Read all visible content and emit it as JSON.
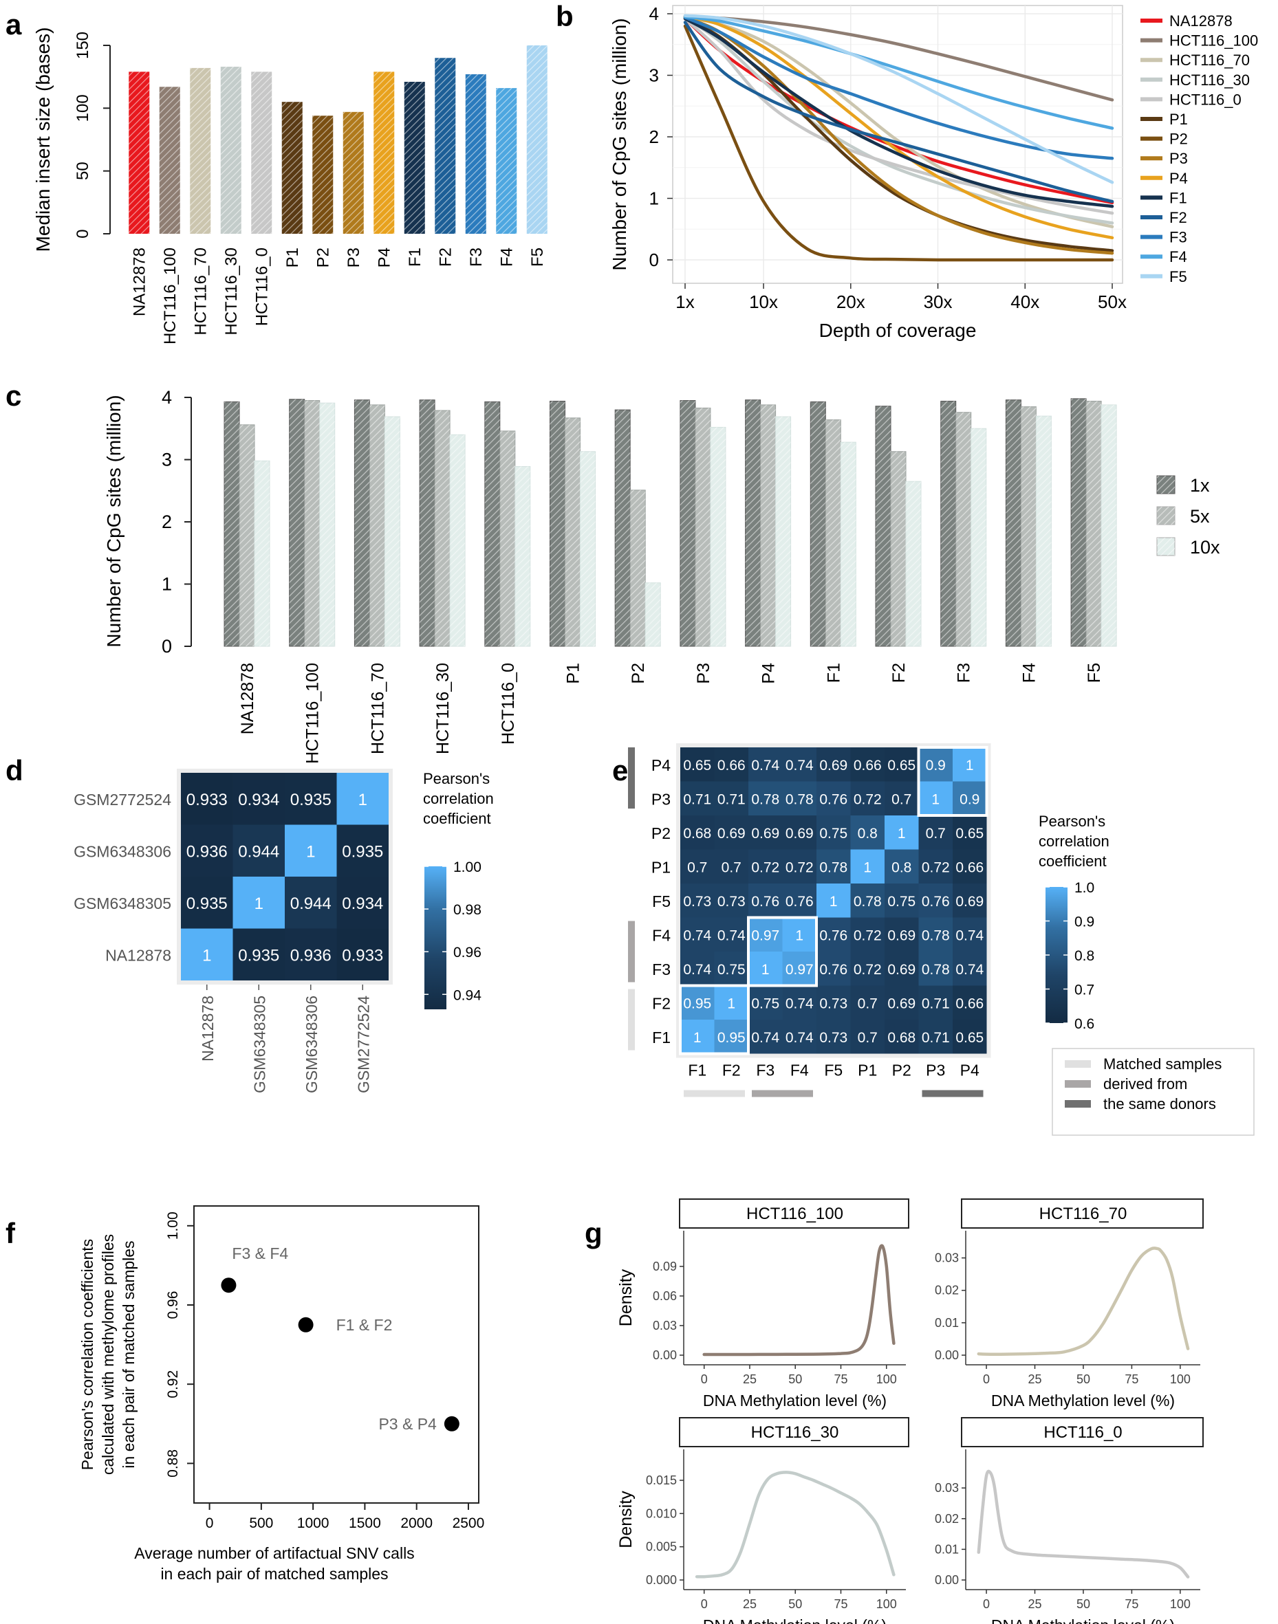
{
  "colors": {
    "NA12878": "#e8181e",
    "HCT116_100": "#8e7d72",
    "HCT116_70": "#cbc5ae",
    "HCT116_30": "#c3ccca",
    "HCT116_0": "#c7c7c7",
    "P1": "#5a3a14",
    "P2": "#7a4f12",
    "P3": "#b07a1c",
    "P4": "#e8a21e",
    "F1": "#16324f",
    "F2": "#1d5f97",
    "F3": "#2b7bbd",
    "F4": "#4ea7e0",
    "F5": "#a9d5f2",
    "dark": "#111111",
    "gridline": "#ebebeb"
  },
  "chart_data": [
    {
      "panel": "a",
      "type": "bar",
      "ylabel": "Median insert size (bases)",
      "ylim": [
        0,
        150
      ],
      "yticks": [
        "0",
        "50",
        "100",
        "150"
      ],
      "categories": [
        "NA12878",
        "HCT116_100",
        "HCT116_70",
        "HCT116_30",
        "HCT116_0",
        "P1",
        "P2",
        "P3",
        "P4",
        "F1",
        "F2",
        "F3",
        "F4",
        "F5"
      ],
      "values": [
        129,
        117,
        132,
        133,
        129,
        105,
        94,
        97,
        129,
        121,
        140,
        127,
        116,
        150
      ]
    },
    {
      "panel": "b",
      "type": "line",
      "xlabel": "Depth of coverage",
      "ylabel": "Number of CpG sites (million)",
      "xlim": [
        1,
        50
      ],
      "ylim": [
        0,
        4
      ],
      "xticks": [
        "1x",
        "10x",
        "20x",
        "30x",
        "40x",
        "50x"
      ],
      "yticks": [
        "0",
        "1",
        "2",
        "3",
        "4"
      ],
      "x": [
        1,
        5,
        10,
        15,
        20,
        25,
        30,
        35,
        40,
        45,
        50
      ],
      "series": [
        {
          "name": "NA12878",
          "values": [
            3.92,
            3.4,
            2.9,
            2.5,
            2.15,
            1.85,
            1.6,
            1.4,
            1.22,
            1.07,
            0.93
          ]
        },
        {
          "name": "HCT116_100",
          "values": [
            3.96,
            3.93,
            3.87,
            3.78,
            3.66,
            3.52,
            3.35,
            3.17,
            2.98,
            2.79,
            2.6
          ]
        },
        {
          "name": "HCT116_70",
          "values": [
            3.94,
            3.83,
            3.55,
            3.1,
            2.55,
            1.98,
            1.52,
            1.17,
            0.9,
            0.7,
            0.54
          ]
        },
        {
          "name": "HCT116_30",
          "values": [
            3.94,
            3.55,
            2.9,
            2.3,
            1.85,
            1.5,
            1.25,
            1.03,
            0.85,
            0.71,
            0.6
          ]
        },
        {
          "name": "HCT116_0",
          "values": [
            3.92,
            3.4,
            2.6,
            2.1,
            1.78,
            1.55,
            1.35,
            1.18,
            1.02,
            0.88,
            0.76
          ]
        },
        {
          "name": "P1",
          "values": [
            3.93,
            3.62,
            3.02,
            2.3,
            1.62,
            1.08,
            0.72,
            0.48,
            0.32,
            0.22,
            0.15
          ]
        },
        {
          "name": "P2",
          "values": [
            3.8,
            2.5,
            0.95,
            0.18,
            0.03,
            0.01,
            0.0,
            0.0,
            0.0,
            0.0,
            0.0
          ]
        },
        {
          "name": "P3",
          "values": [
            3.94,
            3.7,
            3.15,
            2.45,
            1.72,
            1.13,
            0.72,
            0.45,
            0.28,
            0.17,
            0.11
          ]
        },
        {
          "name": "P4",
          "values": [
            3.96,
            3.82,
            3.46,
            2.95,
            2.38,
            1.82,
            1.35,
            0.98,
            0.7,
            0.5,
            0.36
          ]
        },
        {
          "name": "F1",
          "values": [
            3.92,
            3.6,
            3.05,
            2.55,
            2.1,
            1.75,
            1.45,
            1.22,
            1.05,
            0.95,
            0.87
          ]
        },
        {
          "name": "F2",
          "values": [
            3.86,
            3.1,
            2.65,
            2.35,
            2.12,
            1.92,
            1.72,
            1.52,
            1.32,
            1.12,
            0.95
          ]
        },
        {
          "name": "F3",
          "values": [
            3.94,
            3.7,
            3.3,
            2.95,
            2.7,
            2.45,
            2.22,
            2.02,
            1.85,
            1.72,
            1.65
          ]
        },
        {
          "name": "F4",
          "values": [
            3.95,
            3.88,
            3.72,
            3.55,
            3.35,
            3.13,
            2.9,
            2.68,
            2.48,
            2.3,
            2.14
          ]
        },
        {
          "name": "F5",
          "values": [
            3.97,
            3.93,
            3.8,
            3.6,
            3.35,
            3.05,
            2.7,
            2.33,
            1.96,
            1.6,
            1.26
          ]
        }
      ]
    },
    {
      "panel": "c",
      "type": "bar",
      "ylabel": "Number of CpG sites (million)",
      "ylim": [
        0,
        4
      ],
      "yticks": [
        "0",
        "1",
        "2",
        "3",
        "4"
      ],
      "categories": [
        "NA12878",
        "HCT116_100",
        "HCT116_70",
        "HCT116_30",
        "HCT116_0",
        "P1",
        "P2",
        "P3",
        "P4",
        "F1",
        "F2",
        "F3",
        "F4",
        "F5"
      ],
      "legend": [
        "1x",
        "5x",
        "10x"
      ],
      "series": [
        {
          "name": "1x",
          "values": [
            3.93,
            3.97,
            3.96,
            3.96,
            3.93,
            3.94,
            3.8,
            3.95,
            3.96,
            3.93,
            3.86,
            3.94,
            3.96,
            3.98
          ]
        },
        {
          "name": "5x",
          "values": [
            3.56,
            3.95,
            3.88,
            3.79,
            3.46,
            3.67,
            2.51,
            3.83,
            3.88,
            3.64,
            3.13,
            3.76,
            3.85,
            3.94
          ]
        },
        {
          "name": "10x",
          "values": [
            2.98,
            3.91,
            3.69,
            3.4,
            2.89,
            3.13,
            1.02,
            3.52,
            3.69,
            3.28,
            2.65,
            3.5,
            3.7,
            3.88
          ]
        }
      ]
    },
    {
      "panel": "d",
      "type": "heatmap",
      "labels": [
        "NA12878",
        "GSM6348305",
        "GSM6348306",
        "GSM2772524"
      ],
      "rows": [
        {
          "label": "GSM2772524",
          "values": [
            0.933,
            0.934,
            0.935,
            1
          ],
          "texts": [
            "0.933",
            "0.934",
            "0.935",
            "1"
          ]
        },
        {
          "label": "GSM6348306",
          "values": [
            0.936,
            0.944,
            1,
            0.935
          ],
          "texts": [
            "0.936",
            "0.944",
            "1",
            "0.935"
          ]
        },
        {
          "label": "GSM6348305",
          "values": [
            0.935,
            1,
            0.944,
            0.934
          ],
          "texts": [
            "0.935",
            "1",
            "0.944",
            "0.934"
          ]
        },
        {
          "label": "NA12878",
          "values": [
            1,
            0.935,
            0.936,
            0.933
          ],
          "texts": [
            "1",
            "0.935",
            "0.936",
            "0.933"
          ]
        }
      ],
      "legend_title": [
        "Pearson's",
        "correlation",
        "coefficient"
      ],
      "legend_ticks": [
        "1.00",
        "0.98",
        "0.96",
        "0.94"
      ],
      "range": [
        0.933,
        1.0
      ]
    },
    {
      "panel": "e",
      "type": "heatmap",
      "labels": [
        "F1",
        "F2",
        "F3",
        "F4",
        "F5",
        "P1",
        "P2",
        "P3",
        "P4"
      ],
      "rows": [
        {
          "label": "P4",
          "values": [
            0.65,
            0.66,
            0.74,
            0.74,
            0.69,
            0.66,
            0.65,
            0.9,
            1
          ],
          "texts": [
            "0.65",
            "0.66",
            "0.74",
            "0.74",
            "0.69",
            "0.66",
            "0.65",
            "0.9",
            "1"
          ]
        },
        {
          "label": "P3",
          "values": [
            0.71,
            0.71,
            0.78,
            0.78,
            0.76,
            0.72,
            0.7,
            1,
            0.9
          ],
          "texts": [
            "0.71",
            "0.71",
            "0.78",
            "0.78",
            "0.76",
            "0.72",
            "0.7",
            "1",
            "0.9"
          ]
        },
        {
          "label": "P2",
          "values": [
            0.68,
            0.69,
            0.69,
            0.69,
            0.75,
            0.8,
            1,
            0.7,
            0.65
          ],
          "texts": [
            "0.68",
            "0.69",
            "0.69",
            "0.69",
            "0.75",
            "0.8",
            "1",
            "0.7",
            "0.65"
          ]
        },
        {
          "label": "P1",
          "values": [
            0.7,
            0.7,
            0.72,
            0.72,
            0.78,
            1,
            0.8,
            0.72,
            0.66
          ],
          "texts": [
            "0.7",
            "0.7",
            "0.72",
            "0.72",
            "0.78",
            "1",
            "0.8",
            "0.72",
            "0.66"
          ]
        },
        {
          "label": "F5",
          "values": [
            0.73,
            0.73,
            0.76,
            0.76,
            1,
            0.78,
            0.75,
            0.76,
            0.69
          ],
          "texts": [
            "0.73",
            "0.73",
            "0.76",
            "0.76",
            "1",
            "0.78",
            "0.75",
            "0.76",
            "0.69"
          ]
        },
        {
          "label": "F4",
          "values": [
            0.74,
            0.74,
            0.97,
            1,
            0.76,
            0.72,
            0.69,
            0.78,
            0.74
          ],
          "texts": [
            "0.74",
            "0.74",
            "0.97",
            "1",
            "0.76",
            "0.72",
            "0.69",
            "0.78",
            "0.74"
          ]
        },
        {
          "label": "F3",
          "values": [
            0.74,
            0.75,
            1,
            0.97,
            0.76,
            0.72,
            0.69,
            0.78,
            0.74
          ],
          "texts": [
            "0.74",
            "0.75",
            "1",
            "0.97",
            "0.76",
            "0.72",
            "0.69",
            "0.78",
            "0.74"
          ]
        },
        {
          "label": "F2",
          "values": [
            0.95,
            1,
            0.75,
            0.74,
            0.73,
            0.7,
            0.69,
            0.71,
            0.66
          ],
          "texts": [
            "0.95",
            "1",
            "0.75",
            "0.74",
            "0.73",
            "0.7",
            "0.69",
            "0.71",
            "0.66"
          ]
        },
        {
          "label": "F1",
          "values": [
            1,
            0.95,
            0.74,
            0.74,
            0.73,
            0.7,
            0.68,
            0.71,
            0.65
          ],
          "texts": [
            "1",
            "0.95",
            "0.74",
            "0.74",
            "0.73",
            "0.7",
            "0.68",
            "0.71",
            "0.65"
          ]
        }
      ],
      "legend_title": [
        "Pearson's",
        "correlation",
        "coefficient"
      ],
      "legend_ticks": [
        "1.0",
        "0.9",
        "0.8",
        "0.7",
        "0.6"
      ],
      "range": [
        0.6,
        1.0
      ],
      "group_legend": [
        "Matched samples",
        "derived from",
        "the same donors"
      ]
    },
    {
      "panel": "f",
      "type": "scatter",
      "xlabel": [
        "Average number of artifactual SNV calls",
        "in each pair of matched samples"
      ],
      "ylabel": [
        "Pearson's correlation coefficients",
        "calculated with methylome profiles",
        "in each pair of matched samples"
      ],
      "xlim": [
        -150,
        2600
      ],
      "ylim": [
        0.86,
        1.01
      ],
      "xticks": [
        "0",
        "500",
        "1000",
        "1500",
        "2000",
        "2500"
      ],
      "yticks": [
        "0.88",
        "0.92",
        "0.96",
        "1.00"
      ],
      "points": [
        {
          "label": "F3 & F4",
          "x": 185,
          "y": 0.97
        },
        {
          "label": "F1 & F2",
          "x": 930,
          "y": 0.95
        },
        {
          "label": "P3 & P4",
          "x": 2340,
          "y": 0.9
        }
      ]
    },
    {
      "panel": "g",
      "type": "line",
      "xlabel": "DNA Methylation level (%)",
      "ylabel": "Density",
      "xticks": [
        "0",
        "25",
        "50",
        "75",
        "100"
      ],
      "facets": [
        {
          "title": "HCT116_100",
          "ymax": 0.115,
          "yticks": [
            "0.00",
            "0.03",
            "0.06",
            "0.09"
          ],
          "x": [
            0,
            10,
            20,
            30,
            40,
            50,
            60,
            70,
            75,
            80,
            85,
            88,
            90,
            92,
            94,
            96,
            98,
            100,
            102,
            104
          ],
          "y": [
            0.0007,
            0.0007,
            0.0007,
            0.0008,
            0.0008,
            0.0009,
            0.001,
            0.0013,
            0.0017,
            0.0024,
            0.006,
            0.013,
            0.025,
            0.048,
            0.078,
            0.105,
            0.11,
            0.09,
            0.045,
            0.012
          ]
        },
        {
          "title": "HCT116_70",
          "ymax": 0.035,
          "yticks": [
            "0.00",
            "0.01",
            "0.02",
            "0.03"
          ],
          "x": [
            -4,
            0,
            10,
            20,
            30,
            40,
            50,
            55,
            60,
            65,
            70,
            75,
            80,
            85,
            88,
            90,
            93,
            96,
            100,
            104
          ],
          "y": [
            0.0004,
            0.0003,
            0.0003,
            0.0004,
            0.0006,
            0.001,
            0.003,
            0.0055,
            0.0095,
            0.0148,
            0.0205,
            0.0262,
            0.0306,
            0.0328,
            0.0329,
            0.0322,
            0.0295,
            0.024,
            0.012,
            0.002
          ]
        },
        {
          "title": "HCT116_30",
          "ymax": 0.018,
          "yticks": [
            "0.000",
            "0.005",
            "0.010",
            "0.015"
          ],
          "x": [
            -4,
            0,
            5,
            10,
            15,
            20,
            25,
            30,
            35,
            40,
            45,
            50,
            55,
            60,
            65,
            70,
            75,
            80,
            85,
            90,
            95,
            100,
            104
          ],
          "y": [
            0.0005,
            0.0005,
            0.0006,
            0.0008,
            0.0016,
            0.0042,
            0.0085,
            0.0128,
            0.0152,
            0.016,
            0.0162,
            0.016,
            0.0155,
            0.015,
            0.0144,
            0.0138,
            0.0131,
            0.0124,
            0.0115,
            0.0101,
            0.0082,
            0.0045,
            0.0008
          ]
        },
        {
          "title": "HCT116_0",
          "ymax": 0.039,
          "yticks": [
            "0.00",
            "0.01",
            "0.02",
            "0.03"
          ],
          "x": [
            -4,
            -2,
            0,
            2,
            4,
            6,
            8,
            10,
            13,
            16,
            20,
            25,
            30,
            40,
            50,
            60,
            70,
            80,
            90,
            95,
            100,
            104
          ],
          "y": [
            0.009,
            0.023,
            0.034,
            0.035,
            0.031,
            0.022,
            0.0145,
            0.0108,
            0.0095,
            0.0088,
            0.0085,
            0.0082,
            0.008,
            0.0077,
            0.0074,
            0.0071,
            0.0068,
            0.0065,
            0.006,
            0.0055,
            0.004,
            0.001
          ]
        }
      ]
    }
  ]
}
